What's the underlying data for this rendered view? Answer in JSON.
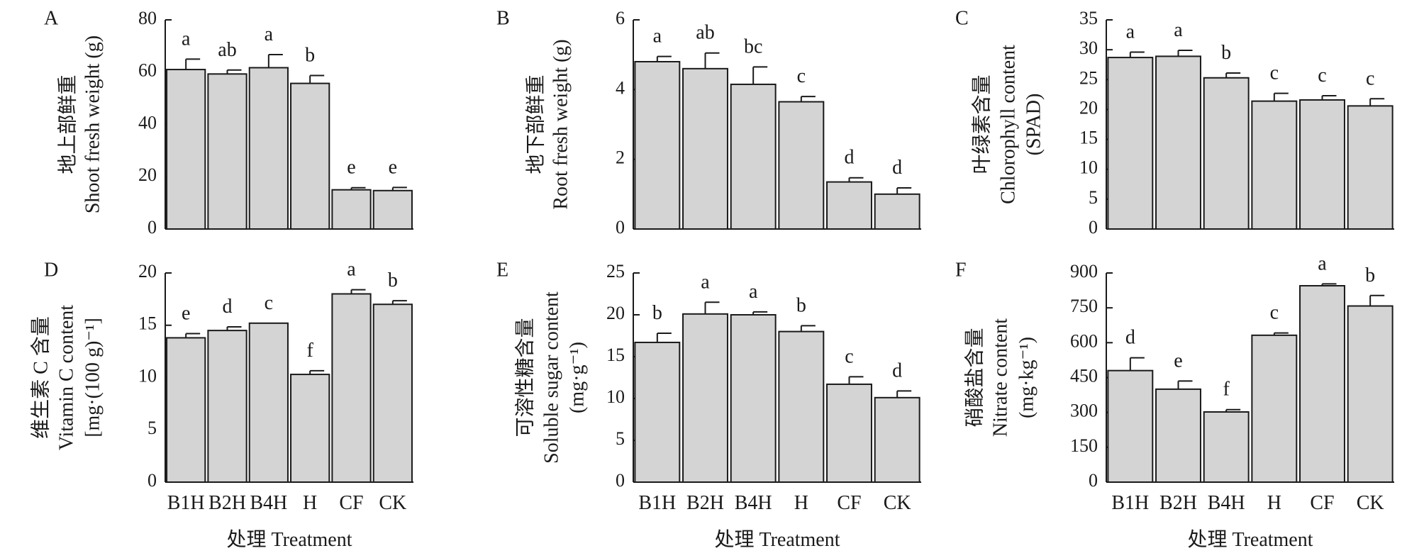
{
  "chart_data": [
    {
      "type": "bar",
      "panel_label": "A",
      "ylabel_cn": "地上部鲜重",
      "ylabel_en": "Shoot fresh weight (g)",
      "ylabel_en2": "",
      "xlabel": "",
      "categories": [
        "B1H",
        "B2H",
        "B4H",
        "H",
        "CF",
        "CK"
      ],
      "values": [
        61,
        59.3,
        61.7,
        55.7,
        15,
        14.7
      ],
      "errors": [
        4,
        1.5,
        5,
        3,
        0.8,
        1.2
      ],
      "letters": [
        "a",
        "ab",
        "a",
        "b",
        "e",
        "e"
      ],
      "ylim": [
        0,
        80
      ],
      "yticks": [
        0,
        20,
        40,
        60,
        80
      ],
      "show_xticklabels": false
    },
    {
      "type": "bar",
      "panel_label": "B",
      "ylabel_cn": "地下部鲜重",
      "ylabel_en": "Root fresh weight (g)",
      "ylabel_en2": "",
      "xlabel": "",
      "categories": [
        "B1H",
        "B2H",
        "B4H",
        "H",
        "CF",
        "CK"
      ],
      "values": [
        4.8,
        4.6,
        4.15,
        3.65,
        1.35,
        1.0
      ],
      "errors": [
        0.15,
        0.45,
        0.5,
        0.15,
        0.12,
        0.18
      ],
      "letters": [
        "a",
        "ab",
        "bc",
        "c",
        "d",
        "d"
      ],
      "ylim": [
        0,
        6
      ],
      "yticks": [
        0,
        2,
        4,
        6
      ],
      "show_xticklabels": false
    },
    {
      "type": "bar",
      "panel_label": "C",
      "ylabel_cn": "叶绿素含量",
      "ylabel_en": "Chlorophyll content",
      "ylabel_en2": "(SPAD)",
      "xlabel": "",
      "categories": [
        "B1H",
        "B2H",
        "B4H",
        "H",
        "CF",
        "CK"
      ],
      "values": [
        28.7,
        28.9,
        25.3,
        21.4,
        21.6,
        20.6
      ],
      "errors": [
        0.9,
        1.0,
        0.8,
        1.3,
        0.7,
        1.2
      ],
      "letters": [
        "a",
        "a",
        "b",
        "c",
        "c",
        "c"
      ],
      "ylim": [
        0,
        35
      ],
      "yticks": [
        0,
        5,
        10,
        15,
        20,
        25,
        30,
        35
      ],
      "show_xticklabels": false
    },
    {
      "type": "bar",
      "panel_label": "D",
      "ylabel_cn": "维生素 C 含量",
      "ylabel_en": "Vitamin C content",
      "ylabel_en2": "[mg·(100 g)⁻¹]",
      "xlabel": "处理 Treatment",
      "categories": [
        "B1H",
        "B2H",
        "B4H",
        "H",
        "CF",
        "CK"
      ],
      "values": [
        13.8,
        14.5,
        15.2,
        10.3,
        18.0,
        17.0
      ],
      "errors": [
        0.4,
        0.35,
        0,
        0.35,
        0.4,
        0.35
      ],
      "letters": [
        "e",
        "d",
        "c",
        "f",
        "a",
        "b"
      ],
      "ylim": [
        0,
        20
      ],
      "yticks": [
        0,
        5,
        10,
        15,
        20
      ],
      "show_xticklabels": true
    },
    {
      "type": "bar",
      "panel_label": "E",
      "ylabel_cn": "可溶性糖含量",
      "ylabel_en": "Soluble sugar content",
      "ylabel_en2": "(mg·g⁻¹)",
      "xlabel": "处理 Treatment",
      "categories": [
        "B1H",
        "B2H",
        "B4H",
        "H",
        "CF",
        "CK"
      ],
      "values": [
        16.7,
        20.1,
        20.0,
        18.0,
        11.7,
        10.1
      ],
      "errors": [
        1.1,
        1.4,
        0.35,
        0.7,
        0.9,
        0.8
      ],
      "letters": [
        "b",
        "a",
        "a",
        "b",
        "c",
        "d"
      ],
      "ylim": [
        0,
        25
      ],
      "yticks": [
        0,
        5,
        10,
        15,
        20,
        25
      ],
      "show_xticklabels": true
    },
    {
      "type": "bar",
      "panel_label": "F",
      "ylabel_cn": "硝酸盐含量",
      "ylabel_en": "Nitrate content",
      "ylabel_en2": "(mg·kg⁻¹)",
      "xlabel": "处理 Treatment",
      "categories": [
        "B1H",
        "B2H",
        "B4H",
        "H",
        "CF",
        "CK"
      ],
      "values": [
        480,
        400,
        302,
        632,
        845,
        758
      ],
      "errors": [
        55,
        35,
        10,
        10,
        8,
        45
      ],
      "letters": [
        "d",
        "e",
        "f",
        "c",
        "a",
        "b"
      ],
      "ylim": [
        0,
        900
      ],
      "yticks": [
        0,
        150,
        300,
        450,
        600,
        750,
        900
      ],
      "show_xticklabels": true
    }
  ]
}
